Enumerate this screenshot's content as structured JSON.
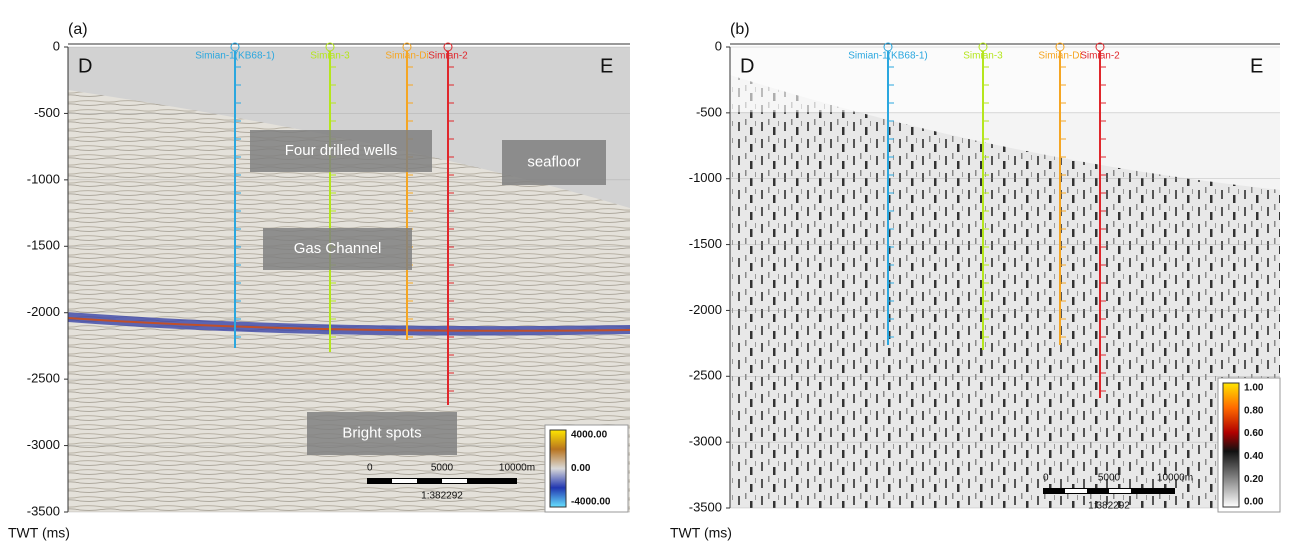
{
  "panels": [
    {
      "label": "(a)",
      "left_label": "D",
      "right_label": "E",
      "axis_title": "TWT (ms)",
      "ylim": [
        -3500,
        0
      ],
      "yticks": [
        0,
        -500,
        -1000,
        -1500,
        -2000,
        -2500,
        -3000,
        -3500
      ],
      "wells": [
        {
          "name": "Simian-1(KB68-1)",
          "color": "#2aa7df"
        },
        {
          "name": "Simian-3",
          "color": "#b5e61d"
        },
        {
          "name": "Simian-Di",
          "color": "#f5a623"
        },
        {
          "name": "Simian-2",
          "color": "#e0262b"
        }
      ],
      "annotations": [
        "Four drilled wells",
        "seafloor",
        "Gas Channel",
        "Bright spots"
      ],
      "colorbar": [
        "4000.00",
        "0.00",
        "-4000.00"
      ],
      "scale_bar": {
        "ticks": [
          "0",
          "5000",
          "10000m"
        ],
        "ratio": "1:382292"
      }
    },
    {
      "label": "(b)",
      "left_label": "D",
      "right_label": "E",
      "axis_title": "TWT (ms)",
      "ylim": [
        -3500,
        0
      ],
      "yticks": [
        0,
        -500,
        -1000,
        -1500,
        -2000,
        -2500,
        -3000,
        -3500
      ],
      "wells": [
        {
          "name": "Simian-1(KB68-1)",
          "color": "#2aa7df"
        },
        {
          "name": "Simian-3",
          "color": "#b5e61d"
        },
        {
          "name": "Simian-Di",
          "color": "#f5a623"
        },
        {
          "name": "Simian-2",
          "color": "#e0262b"
        }
      ],
      "colorbar": [
        "1.00",
        "0.80",
        "0.60",
        "0.40",
        "0.20",
        "0.00"
      ],
      "scale_bar": {
        "ticks": [
          "0",
          "5000",
          "10000m"
        ],
        "ratio": "1:382292"
      }
    }
  ]
}
